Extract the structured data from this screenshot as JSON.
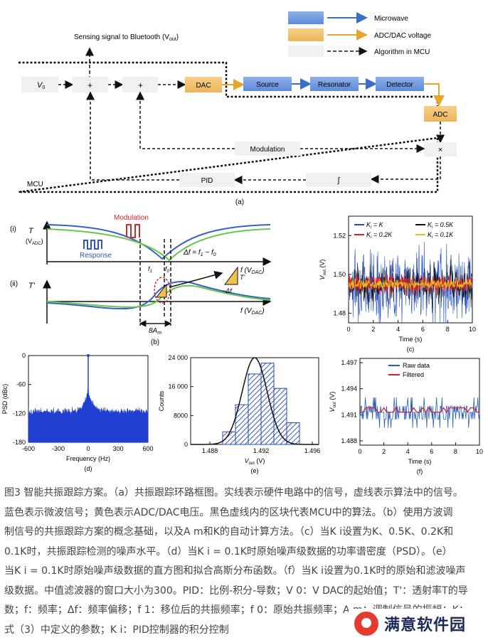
{
  "legend": {
    "microwave": "Microwave",
    "adc_dac": "ADC/DAC voltage",
    "algorithm": "Algorithm in MCU"
  },
  "block_a": {
    "sensing_signal": "Sensing signal to Bluetooth (V",
    "sensing_signal_sub": "out",
    "sensing_signal_end": ")",
    "v0": "V",
    "v0_sub": "0",
    "plus1": "+",
    "plus2": "+",
    "dac": "DAC",
    "source": "Source",
    "resonator": "Resonator",
    "detector": "Detector",
    "adc": "ADC",
    "modulation": "Modulation",
    "multiply": "×",
    "pid": "PID",
    "integral": "∫",
    "mcu": "MCU",
    "label": "(a)"
  },
  "panel_b": {
    "i": "(i)",
    "ii": "(ii)",
    "T": "T",
    "T_unit": "(V",
    "T_unit_sub": "ADC",
    "T_unit_end": ")",
    "Tprime": "T'",
    "modulation": "Modulation",
    "response": "Response",
    "delta_f": "Δf = f",
    "delta_f_sub1": "1",
    "delta_f_mid": " − f",
    "delta_f_sub0": "0",
    "f_axis": "f (V",
    "f_axis_sub": "DAC",
    "f_axis_end": ")",
    "f1": "f",
    "f1_sub": "1",
    "f0": "f",
    "f0_sub": "0",
    "triangle_T": "T'",
    "triangle_df": "−Δf",
    "width": "8A",
    "width_sub": "m",
    "label": "(b)"
  },
  "chart_data": [
    {
      "panel": "c",
      "type": "line",
      "xlabel": "Time (s)",
      "ylabel": "V",
      "ylabel_sub": "out",
      "ylabel_end": " (V)",
      "xlim": [
        0,
        10
      ],
      "ylim": [
        1.475,
        1.53
      ],
      "xticks": [
        0,
        2,
        4,
        6,
        8,
        10
      ],
      "yticks": [
        1.48,
        1.5,
        1.52
      ],
      "legend_position": "top-right",
      "series": [
        {
          "name": "K",
          "name_sub": "i",
          "name_end": " = K",
          "color": "#2350c9",
          "amplitude": 0.022
        },
        {
          "name": "K",
          "name_sub": "i",
          "name_end": " = 0.5K",
          "color": "#111111",
          "amplitude": 0.012
        },
        {
          "name": "K",
          "name_sub": "i",
          "name_end": " = 0.2K",
          "color": "#e02020",
          "amplitude": 0.006
        },
        {
          "name": "K",
          "name_sub": "i",
          "name_end": " = 0.1K",
          "color": "#e8c020",
          "amplitude": 0.003
        }
      ],
      "center": 1.495,
      "label": "(c)"
    },
    {
      "panel": "d",
      "type": "area",
      "xlabel": "Frequency (Hz)",
      "ylabel": "PSD (dBc)",
      "xlim": [
        -600,
        600
      ],
      "ylim": [
        -180,
        0
      ],
      "xticks": [
        -600,
        -300,
        0,
        300,
        600
      ],
      "yticks": [
        0,
        -60,
        -120,
        -180
      ],
      "noise_floor": -120,
      "peak": 0,
      "color": "#1f3fd0",
      "label": "(d)"
    },
    {
      "panel": "e",
      "type": "bar",
      "xlabel": "V",
      "xlabel_sub": "out",
      "xlabel_end": " (V)",
      "ylabel": "Counts",
      "xlim": [
        1.4865,
        1.4965
      ],
      "ylim": [
        0,
        24000
      ],
      "xticks": [
        1.488,
        1.492,
        1.496
      ],
      "xtick_labels": [
        "1.488",
        "1.492",
        "1.496"
      ],
      "yticks": [
        0,
        8000,
        16000,
        24000
      ],
      "ytick_labels": [
        "0",
        "8000",
        "16 000",
        "24 000"
      ],
      "bins": [
        [
          1.489,
          1.49,
          3500
        ],
        [
          1.49,
          1.491,
          11000
        ],
        [
          1.491,
          1.492,
          19500
        ],
        [
          1.492,
          1.493,
          22500
        ],
        [
          1.493,
          1.494,
          15500
        ],
        [
          1.494,
          1.495,
          6000
        ]
      ],
      "gaussian": {
        "mean": 1.4915,
        "sigma": 0.00098,
        "peak": 24000
      },
      "label": "(e)"
    },
    {
      "panel": "f",
      "type": "line",
      "xlabel": "Time (s)",
      "ylabel": "V",
      "ylabel_sub": "out",
      "ylabel_end": " (V)",
      "xlim": [
        0,
        10
      ],
      "ylim": [
        1.4875,
        1.4975
      ],
      "xticks": [
        0,
        2,
        4,
        6,
        8,
        10
      ],
      "yticks": [
        1.488,
        1.491,
        1.494,
        1.497
      ],
      "ytick_labels": [
        "1.488",
        "1.491",
        "1.494",
        "1.497"
      ],
      "series": [
        {
          "name": "Raw data",
          "color": "#2a5fb8"
        },
        {
          "name": "Filtered",
          "color": "#d42030"
        }
      ],
      "label": "(f)"
    }
  ],
  "caption": {
    "lines": [
      "图3 智能共振跟踪方案。（a）共振跟踪环路框图。实线表示硬件电路中的信号，虚线表示算法中的信号。",
      "蓝色表示微波信号；黄色表示ADC/DAC电压。黑色虚线内的区块代表MCU中的算法。（b）使用方波调",
      "制信号的共振跟踪方案的概念基础，以及A m和K的自动计算方法。（c）当K i设置为K、0.5K、0.2K和",
      "0.1K时，共振跟踪检测的噪声水平。（d）当K i = 0.1K时原始噪声级数据的功率谱密度（PSD）。（e）",
      "当K i = 0.1K时原始噪声级数据的直方图和拟合高斯分布函数。（f）当K i设置为0.1K时的原始和滤波噪声",
      "级数据。中值滤波器的窗口大小为300。PID：比例-积分-导数；V 0：V DAC的起始值；T'：透射率T的导",
      "数；f：频率；Δf：频率偏移；f 1：移位后的共振频率；f 0：原始共振频率；A m：调制信号的振幅；K：",
      "式（3）中定义的参数；K i：PID控制器的积分控制"
    ]
  },
  "watermark": "满意软件园"
}
